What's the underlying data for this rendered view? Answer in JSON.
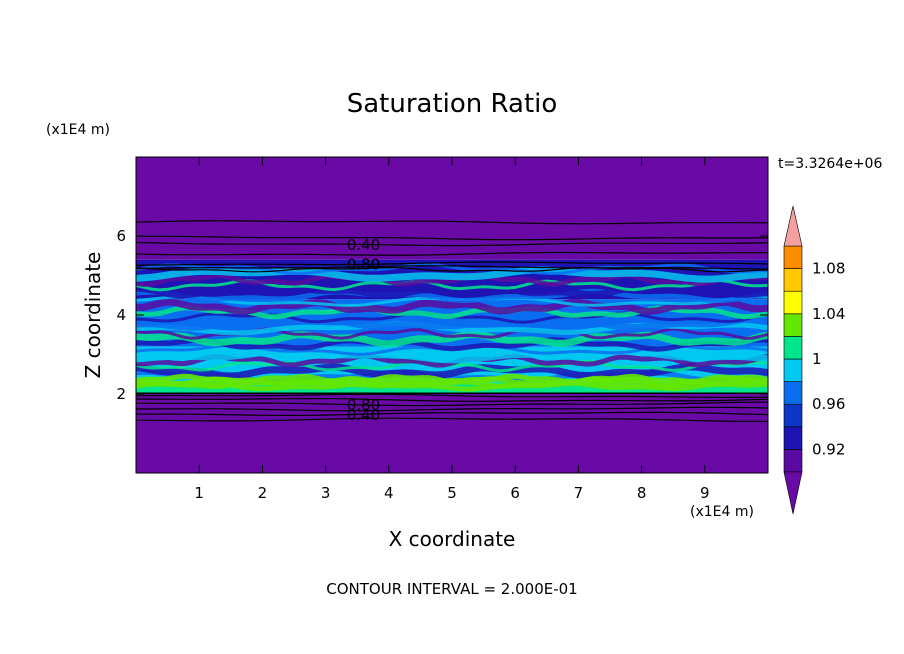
{
  "chart_data": {
    "type": "heatmap",
    "title": "Saturation Ratio",
    "xlabel": "X coordinate",
    "ylabel": "Z coordinate",
    "x_unit_label": "(x1E4 m)",
    "y_unit_label": "(x1E4 m)",
    "xlim": [
      0,
      10
    ],
    "ylim": [
      0,
      8
    ],
    "x_ticks": [
      1,
      2,
      3,
      4,
      5,
      6,
      7,
      8,
      9
    ],
    "y_ticks": [
      2,
      4,
      6
    ],
    "time_label": "t=3.3264e+06",
    "contour_interval_label": "CONTOUR INTERVAL = 2.000E-01",
    "colorbar": {
      "levels": [
        0.9,
        0.92,
        0.94,
        0.96,
        0.98,
        1.0,
        1.02,
        1.04,
        1.06,
        1.08,
        1.1
      ],
      "colors": [
        "#5a0aa0",
        "#1e14b4",
        "#0a37c8",
        "#0a6ef0",
        "#00c8f0",
        "#00e68c",
        "#64e600",
        "#ffff00",
        "#ffc800",
        "#ff8c00",
        "#ff3c14"
      ],
      "under_color": "#6a0aa6",
      "over_color": "#f4a0a0",
      "tick_labels": [
        "0.92",
        "0.96",
        "1",
        "1.04",
        "1.08"
      ],
      "tick_values": [
        0.92,
        0.96,
        1.0,
        1.04,
        1.08
      ]
    },
    "layers": [
      {
        "z_range": [
          0,
          2.0
        ],
        "value": "0.40",
        "color": "#6a0aa6"
      },
      {
        "z_range": [
          2.0,
          2.3
        ],
        "value": "1.00",
        "color": "#00e68c"
      },
      {
        "z_range": [
          2.3,
          3.2
        ],
        "value": "0.98",
        "color": "#00c8f0"
      },
      {
        "z_range": [
          3.2,
          4.4
        ],
        "value": "0.96",
        "color": "#0a6ef0"
      },
      {
        "z_range": [
          4.4,
          5.4
        ],
        "value": "0.92",
        "color": "#1e14b4"
      },
      {
        "z_range": [
          5.4,
          8.0
        ],
        "value": "0.40",
        "color": "#6a0aa6"
      }
    ],
    "contour_lines": [
      {
        "z": 6.35,
        "label": ""
      },
      {
        "z": 5.95,
        "label": ""
      },
      {
        "z": 5.8,
        "label": "0.40"
      },
      {
        "z": 5.55,
        "label": ""
      },
      {
        "z": 5.3,
        "label": "0.80"
      },
      {
        "z": 5.2,
        "label": ""
      },
      {
        "z": 1.95,
        "label": ""
      },
      {
        "z": 1.85,
        "label": ""
      },
      {
        "z": 1.75,
        "label": "0.80"
      },
      {
        "z": 1.62,
        "label": ""
      },
      {
        "z": 1.5,
        "label": "0.40"
      },
      {
        "z": 1.35,
        "label": ""
      }
    ],
    "grid": false,
    "legend": "colorbar-right"
  }
}
